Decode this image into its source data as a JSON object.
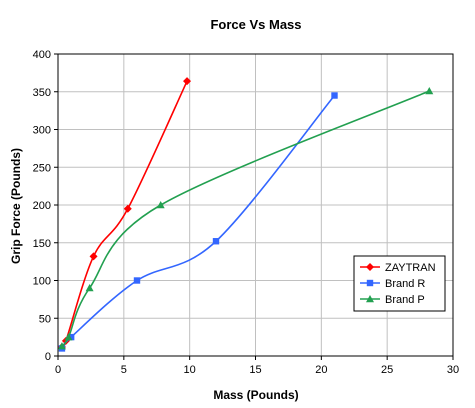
{
  "chart_data": {
    "type": "line",
    "title": "Force Vs Mass",
    "xlabel": "Mass (Pounds)",
    "ylabel": "Grip Force (Pounds)",
    "xlim": [
      0,
      30
    ],
    "ylim": [
      0,
      400
    ],
    "x_ticks": [
      0,
      5,
      10,
      15,
      20,
      25,
      30
    ],
    "y_ticks": [
      0,
      50,
      100,
      150,
      200,
      250,
      300,
      350,
      400
    ],
    "grid": true,
    "legend_position": "right",
    "series": [
      {
        "name": "ZAYTRAN",
        "color": "#ff0000",
        "marker": "diamond",
        "points": [
          [
            0.3,
            12
          ],
          [
            0.6,
            20
          ],
          [
            2.7,
            132
          ],
          [
            5.3,
            195
          ],
          [
            9.8,
            364
          ]
        ]
      },
      {
        "name": "Brand R",
        "color": "#3366ff",
        "marker": "square",
        "points": [
          [
            0.3,
            10
          ],
          [
            1.0,
            25
          ],
          [
            6.0,
            100
          ],
          [
            12.0,
            152
          ],
          [
            21.0,
            345
          ]
        ]
      },
      {
        "name": "Brand P",
        "color": "#22a050",
        "marker": "triangle",
        "points": [
          [
            0.3,
            13
          ],
          [
            0.8,
            25
          ],
          [
            2.4,
            90
          ],
          [
            7.8,
            200
          ],
          [
            28.2,
            351
          ]
        ]
      }
    ]
  }
}
